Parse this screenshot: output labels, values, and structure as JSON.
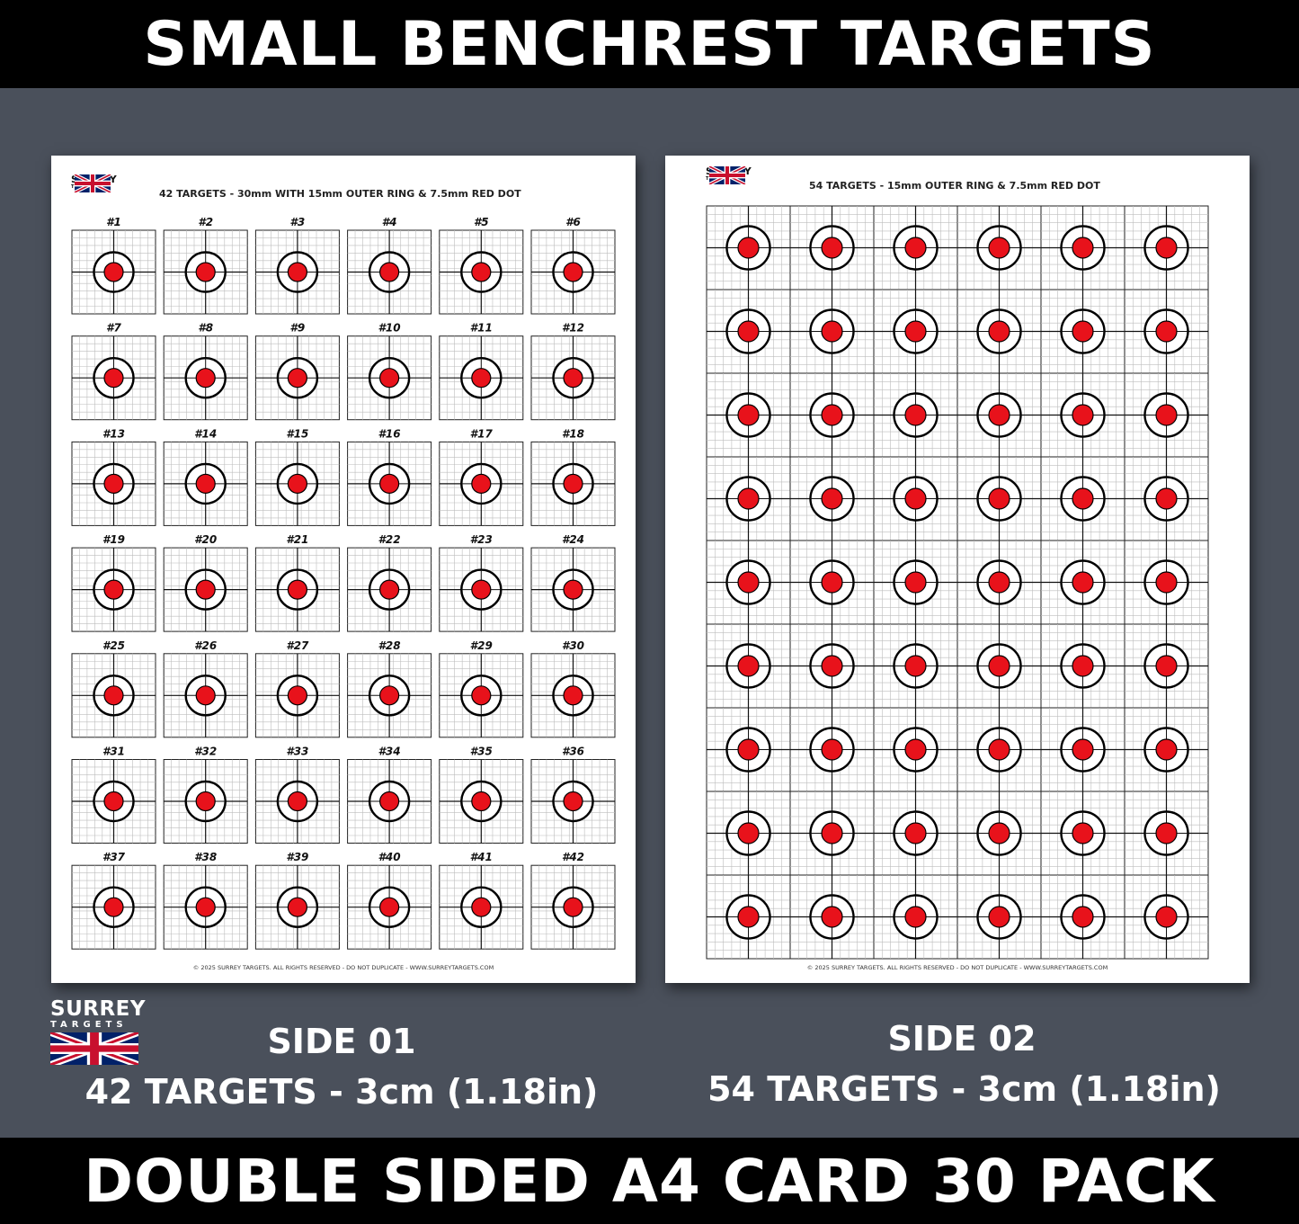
{
  "header": {
    "title": "SMALL BENCHREST TARGETS"
  },
  "footer": {
    "title": "DOUBLE SIDED A4 CARD 30 PACK"
  },
  "brand": {
    "word1": "SURREY",
    "word2": "TARGETS"
  },
  "side1": {
    "label": "SIDE 01",
    "detail": "42 TARGETS - 3cm (1.18in)",
    "sheet_title": "42 TARGETS - 30mm WITH 15mm OUTER RING & 7.5mm RED DOT",
    "copyright": "© 2025 SURREY TARGETS. ALL RIGHTS RESERVED - DO NOT DUPLICATE - WWW.SURREYTARGETS.COM",
    "columns": 6,
    "rows": 7,
    "target_numbers": [
      "#1",
      "#2",
      "#3",
      "#4",
      "#5",
      "#6",
      "#7",
      "#8",
      "#9",
      "#10",
      "#11",
      "#12",
      "#13",
      "#14",
      "#15",
      "#16",
      "#17",
      "#18",
      "#19",
      "#20",
      "#21",
      "#22",
      "#23",
      "#24",
      "#25",
      "#26",
      "#27",
      "#28",
      "#29",
      "#30",
      "#31",
      "#32",
      "#33",
      "#34",
      "#35",
      "#36",
      "#37",
      "#38",
      "#39",
      "#40",
      "#41",
      "#42"
    ]
  },
  "side2": {
    "label": "SIDE 02",
    "detail": "54 TARGETS - 3cm (1.18in)",
    "sheet_title": "54 TARGETS - 15mm OUTER RING & 7.5mm RED DOT",
    "copyright": "© 2025 SURREY TARGETS. ALL RIGHTS RESERVED - DO NOT DUPLICATE - WWW.SURREYTARGETS.COM",
    "columns": 6,
    "rows": 9
  },
  "colors": {
    "background": "#4a505b",
    "bar": "#000000",
    "dot": "#e8121b",
    "flag_blue": "#012169",
    "flag_red": "#c8102e"
  }
}
